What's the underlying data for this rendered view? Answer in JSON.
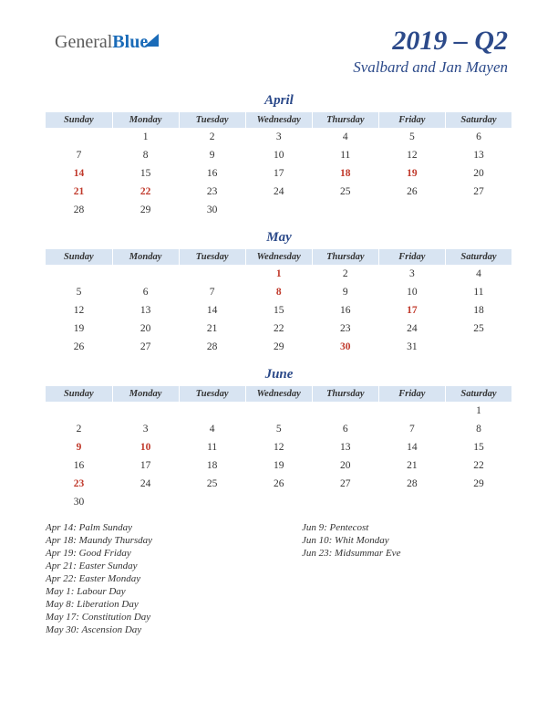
{
  "logo": {
    "part1": "General",
    "part2": "Blue"
  },
  "header": {
    "yq": "2019 – Q2",
    "region": "Svalbard and Jan Mayen"
  },
  "colors": {
    "header_bg": "#d8e4f2",
    "title_color": "#2c4a8a",
    "holiday_color": "#c0392b",
    "text_color": "#333333",
    "background": "#ffffff"
  },
  "weekdays": [
    "Sunday",
    "Monday",
    "Tuesday",
    "Wednesday",
    "Thursday",
    "Friday",
    "Saturday"
  ],
  "months": [
    {
      "name": "April",
      "weeks": [
        [
          "",
          "1",
          "2",
          "3",
          "4",
          "5",
          "6"
        ],
        [
          "7",
          "8",
          "9",
          "10",
          "11",
          "12",
          "13"
        ],
        [
          "14",
          "15",
          "16",
          "17",
          "18",
          "19",
          "20"
        ],
        [
          "21",
          "22",
          "23",
          "24",
          "25",
          "26",
          "27"
        ],
        [
          "28",
          "29",
          "30",
          "",
          "",
          "",
          ""
        ]
      ],
      "holidays": [
        "14",
        "18",
        "19",
        "21",
        "22"
      ]
    },
    {
      "name": "May",
      "weeks": [
        [
          "",
          "",
          "",
          "1",
          "2",
          "3",
          "4"
        ],
        [
          "5",
          "6",
          "7",
          "8",
          "9",
          "10",
          "11"
        ],
        [
          "12",
          "13",
          "14",
          "15",
          "16",
          "17",
          "18"
        ],
        [
          "19",
          "20",
          "21",
          "22",
          "23",
          "24",
          "25"
        ],
        [
          "26",
          "27",
          "28",
          "29",
          "30",
          "31",
          ""
        ]
      ],
      "holidays": [
        "1",
        "8",
        "17",
        "30"
      ]
    },
    {
      "name": "June",
      "weeks": [
        [
          "",
          "",
          "",
          "",
          "",
          "",
          "1"
        ],
        [
          "2",
          "3",
          "4",
          "5",
          "6",
          "7",
          "8"
        ],
        [
          "9",
          "10",
          "11",
          "12",
          "13",
          "14",
          "15"
        ],
        [
          "16",
          "17",
          "18",
          "19",
          "20",
          "21",
          "22"
        ],
        [
          "23",
          "24",
          "25",
          "26",
          "27",
          "28",
          "29"
        ],
        [
          "30",
          "",
          "",
          "",
          "",
          "",
          ""
        ]
      ],
      "holidays": [
        "9",
        "10",
        "23"
      ]
    }
  ],
  "holiday_list": {
    "col1": [
      "Apr 14: Palm Sunday",
      "Apr 18: Maundy Thursday",
      "Apr 19: Good Friday",
      "Apr 21: Easter Sunday",
      "Apr 22: Easter Monday",
      "May 1: Labour Day",
      "May 8: Liberation Day",
      "May 17: Constitution Day",
      "May 30: Ascension Day"
    ],
    "col2": [
      "Jun 9: Pentecost",
      "Jun 10: Whit Monday",
      "Jun 23: Midsummar Eve"
    ]
  }
}
